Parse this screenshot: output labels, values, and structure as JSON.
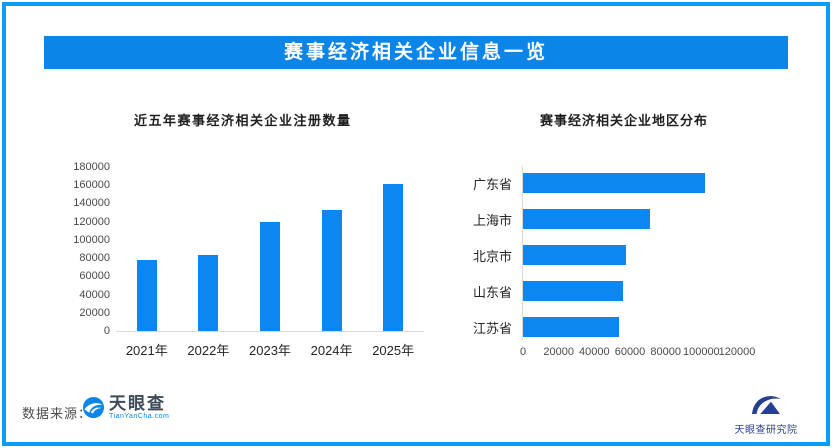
{
  "frame": {
    "border_color": "#0A9DF8"
  },
  "banner": {
    "title": "赛事经济相关企业信息一览",
    "bg": "#0B85E8"
  },
  "chart_data": [
    {
      "type": "bar",
      "title": "近五年赛事经济相关企业注册数量",
      "categories": [
        "2021年",
        "2022年",
        "2023年",
        "2024年",
        "2025年"
      ],
      "values": [
        78000,
        84000,
        120000,
        134000,
        162000
      ],
      "ylim": [
        0,
        180000
      ],
      "yticks": [
        "180000",
        "160000",
        "140000",
        "120000",
        "100000",
        "80000",
        "60000",
        "40000",
        "20000",
        "0"
      ],
      "bar_color": "#0C87F2",
      "grid": false,
      "legend": "none"
    },
    {
      "type": "bar-horizontal",
      "title": "赛事经济相关企业地区分布",
      "categories": [
        "广东省",
        "上海市",
        "北京市",
        "山东省",
        "江苏省"
      ],
      "values": [
        102000,
        71000,
        58000,
        56000,
        54000
      ],
      "xlim": [
        0,
        120000
      ],
      "xticks": [
        0,
        20000,
        40000,
        60000,
        80000,
        100000,
        120000
      ],
      "bar_color": "#0C87F2",
      "grid": false,
      "legend": "none"
    }
  ],
  "footer": {
    "source_label": "数据来源：",
    "logo": {
      "name": "天眼查",
      "domain": "TianYanCha.com",
      "color": "#0B85E8"
    },
    "institute_caption": "天眼查研究院",
    "institute_color": "#24408E"
  },
  "icons": {
    "logo_icon": "tianyancha-logo-icon",
    "institute_icon": "tyc-institute-logo-icon"
  }
}
